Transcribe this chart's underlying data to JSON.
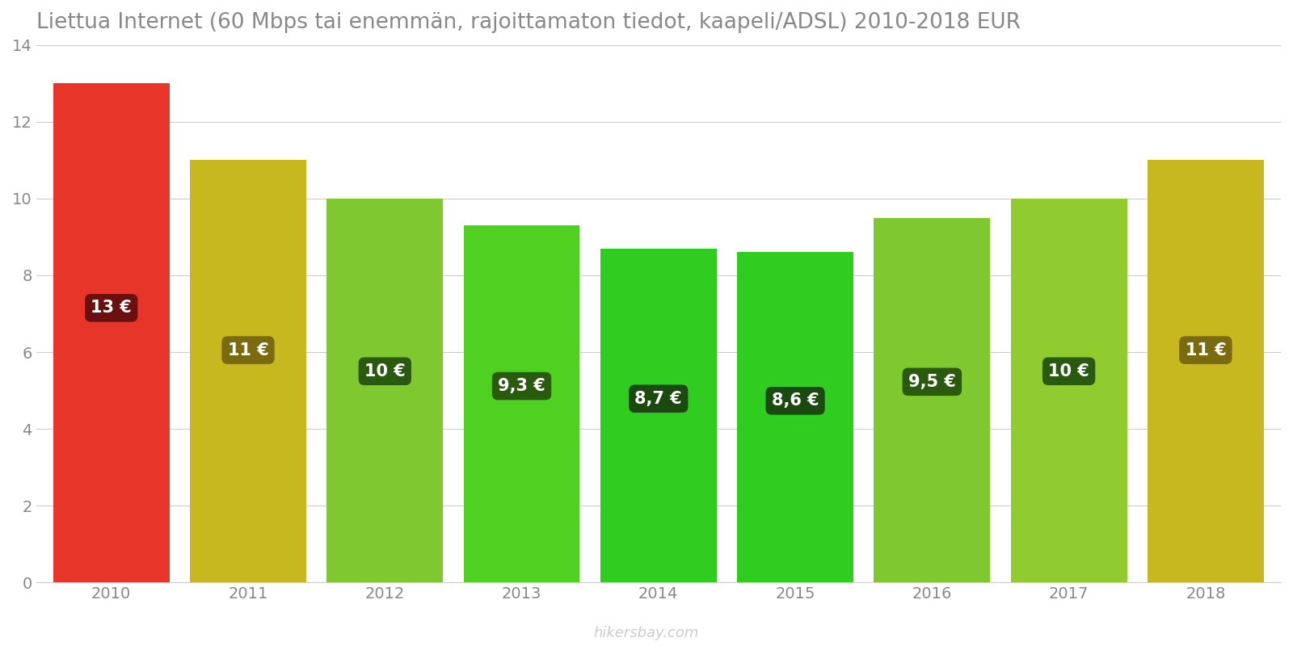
{
  "years": [
    2010,
    2011,
    2012,
    2013,
    2014,
    2015,
    2016,
    2017,
    2018
  ],
  "values": [
    13.0,
    11.0,
    10.0,
    9.3,
    8.7,
    8.6,
    9.5,
    10.0,
    11.0
  ],
  "labels": [
    "13 €",
    "11 €",
    "10 €",
    "9,3 €",
    "8,7 €",
    "8,6 €",
    "9,5 €",
    "10 €",
    "11 €"
  ],
  "bar_colors": [
    "#e8352a",
    "#c8b820",
    "#80c830",
    "#50d020",
    "#30cc20",
    "#30cc20",
    "#80c830",
    "#90cc30",
    "#c8b820"
  ],
  "label_bg_colors": [
    "#6b1010",
    "#7a6a10",
    "#2a5a10",
    "#2a5a10",
    "#1a4a10",
    "#1a4a10",
    "#2a5a10",
    "#2a5a10",
    "#7a6a10"
  ],
  "title": "Liettua Internet (60 Mbps tai enemmän, rajoittamaton tiedot, kaapeli/ADSL) 2010-2018 EUR",
  "ylim": [
    0,
    14
  ],
  "yticks": [
    0,
    2,
    4,
    6,
    8,
    10,
    12,
    14
  ],
  "background_color": "#ffffff",
  "watermark": "hikersbay.com",
  "title_fontsize": 19,
  "bar_width": 0.85
}
